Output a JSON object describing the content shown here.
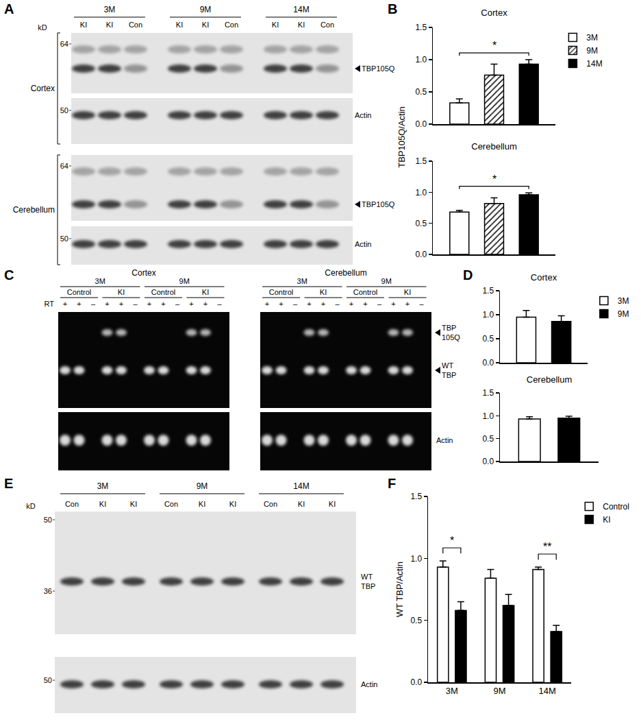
{
  "panel_labels": [
    "A",
    "B",
    "C",
    "D",
    "E",
    "F"
  ],
  "blots": [
    {
      "unit": "kD",
      "groups": [
        "3M",
        "9M",
        "14M"
      ],
      "lanes": [
        "KI",
        "KI",
        "Con",
        "KI",
        "KI",
        "Con",
        "KI",
        "KI",
        "Con"
      ],
      "sections": [
        {
          "name": "Cortex",
          "strips": [
            {
              "sizes": [
                "64"
              ],
              "band_lines": [
                "TBP105Q"
              ]
            },
            {
              "sizes": [
                "50"
              ],
              "band_lines": [
                "Actin"
              ]
            }
          ]
        },
        {
          "name": "Cerebellum",
          "strips": [
            {
              "sizes": [
                "64"
              ],
              "band_lines": [
                "TBP105Q"
              ]
            },
            {
              "sizes": [
                "50"
              ],
              "band_lines": [
                "Actin"
              ]
            }
          ]
        }
      ]
    },
    {
      "unit": "kD",
      "groups": [
        "3M",
        "9M",
        "14M"
      ],
      "lanes": [
        "Con",
        "KI",
        "KI",
        "Con",
        "KI",
        "KI",
        "Con",
        "KI",
        "KI"
      ],
      "sections": [
        {
          "strips": [
            {
              "sizes": [
                "50",
                "36"
              ],
              "band_lines": [
                "WT",
                "TBP"
              ]
            },
            {
              "sizes": [
                "50"
              ],
              "band_lines": [
                "Actin"
              ]
            }
          ]
        }
      ]
    }
  ],
  "gels": {
    "rt_label": "RT",
    "upper_bands": [
      [
        "TBP",
        "105Q"
      ],
      [
        "WT",
        "TBP"
      ]
    ],
    "lower_band": [
      "Actin"
    ],
    "gels": [
      {
        "name": "Cortex",
        "groups": [
          {
            "name": "3M",
            "subgroups": [
              {
                "name": "Control",
                "rt": [
                  "+",
                  "+",
                  "–"
                ]
              },
              {
                "name": "KI",
                "rt": [
                  "+",
                  "+",
                  "–"
                ]
              }
            ]
          },
          {
            "name": "9M",
            "subgroups": [
              {
                "name": "Control",
                "rt": [
                  "+",
                  "+",
                  "–"
                ]
              },
              {
                "name": "KI",
                "rt": [
                  "+",
                  "+",
                  "–"
                ]
              }
            ]
          }
        ]
      },
      {
        "name": "Cerebellum",
        "groups": [
          {
            "name": "3M",
            "subgroups": [
              {
                "name": "Control",
                "rt": [
                  "+",
                  "+",
                  "–"
                ]
              },
              {
                "name": "KI",
                "rt": [
                  "+",
                  "+",
                  "–"
                ]
              }
            ]
          },
          {
            "name": "9M",
            "subgroups": [
              {
                "name": "Control",
                "rt": [
                  "+",
                  "+",
                  "–"
                ]
              },
              {
                "name": "KI",
                "rt": [
                  "+",
                  "+",
                  "–"
                ]
              }
            ]
          }
        ]
      }
    ]
  },
  "chart_data": [
    {
      "type": "bar",
      "title": "Cortex",
      "y_label": "TBP105Q/Actin",
      "categories": [
        null
      ],
      "series": [
        {
          "name": "3M",
          "color": "#ffffff",
          "values": [
            0.33
          ],
          "errors": [
            0.06
          ]
        },
        {
          "name": "9M",
          "color": "#ffffff",
          "marker": "hatched",
          "values": [
            0.76
          ],
          "errors": [
            0.17
          ]
        },
        {
          "name": "14M",
          "color": "#000000",
          "values": [
            0.93
          ],
          "errors": [
            0.07
          ]
        }
      ],
      "ylim": [
        0,
        1.5
      ],
      "yticks": [
        {
          "value": 0,
          "label": "0.0"
        },
        0.5,
        {
          "value": 1,
          "label": "1.0"
        },
        1.5
      ],
      "grid": false,
      "legend": "right",
      "tick_labels": "y",
      "significance": [
        {
          "category": null,
          "series": [
            "3M",
            "14M"
          ],
          "text": "*"
        }
      ]
    },
    {
      "type": "bar",
      "title": "Cerebellum",
      "categories": [
        null
      ],
      "series": [
        {
          "name": "3M",
          "color": "#ffffff",
          "values": [
            0.68
          ],
          "errors": [
            0.03
          ]
        },
        {
          "name": "9M",
          "color": "#ffffff",
          "marker": "hatched",
          "values": [
            0.82
          ],
          "errors": [
            0.09
          ]
        },
        {
          "name": "14M",
          "color": "#000000",
          "values": [
            0.96
          ],
          "errors": [
            0.03
          ]
        }
      ],
      "ylim": [
        0,
        1.5
      ],
      "yticks": [
        {
          "value": 0,
          "label": "0.0"
        },
        0.5,
        {
          "value": 1,
          "label": "1.0"
        },
        1.5
      ],
      "grid": false,
      "tick_labels": "y",
      "significance": [
        {
          "category": null,
          "series": [
            "3M",
            "14M"
          ],
          "text": "*"
        }
      ]
    },
    {
      "type": "bar",
      "title": "Cortex",
      "categories": [
        null
      ],
      "series": [
        {
          "name": "3M",
          "color": "#ffffff",
          "values": [
            0.95
          ],
          "errors": [
            0.14
          ]
        },
        {
          "name": "9M",
          "color": "#000000",
          "values": [
            0.86
          ],
          "errors": [
            0.12
          ]
        }
      ],
      "ylim": [
        0,
        1.5
      ],
      "yticks": [
        {
          "value": 0,
          "label": "0.0"
        },
        0.5,
        {
          "value": 1,
          "label": "1.0"
        },
        1.5
      ],
      "grid": false,
      "legend": "right",
      "tick_labels": "y"
    },
    {
      "type": "bar",
      "title": "Cerebellum",
      "categories": [
        null
      ],
      "series": [
        {
          "name": "3M",
          "color": "#ffffff",
          "values": [
            0.93
          ],
          "errors": [
            0.05
          ]
        },
        {
          "name": "9M",
          "color": "#000000",
          "values": [
            0.95
          ],
          "errors": [
            0.04
          ]
        }
      ],
      "ylim": [
        0,
        1.5
      ],
      "yticks": [
        {
          "value": 0,
          "label": "0.0"
        },
        0.5,
        {
          "value": 1,
          "label": "1.0"
        },
        1.5
      ],
      "grid": false,
      "tick_labels": "y"
    },
    {
      "type": "bar",
      "y_label": "WT TBP/Actin",
      "categories": [
        "3M",
        "9M",
        "14M"
      ],
      "series": [
        {
          "name": "Control",
          "color": "#ffffff",
          "values": [
            0.93,
            0.84,
            0.91
          ],
          "errors": [
            0.05,
            0.07,
            0.02
          ]
        },
        {
          "name": "KI",
          "color": "#000000",
          "values": [
            0.58,
            0.62,
            0.41
          ],
          "errors": [
            0.07,
            0.09,
            0.05
          ]
        }
      ],
      "ylim": [
        0,
        1.5
      ],
      "yticks": [
        {
          "value": 0,
          "label": "0.0"
        },
        0.5,
        {
          "value": 1,
          "label": "1.0"
        },
        1.5
      ],
      "grid": false,
      "legend": "right",
      "significance": [
        {
          "category": "3M",
          "series": [
            "Control",
            "KI"
          ],
          "text": "*"
        },
        {
          "category": "14M",
          "series": [
            "Control",
            "KI"
          ],
          "text": "**"
        }
      ]
    }
  ]
}
